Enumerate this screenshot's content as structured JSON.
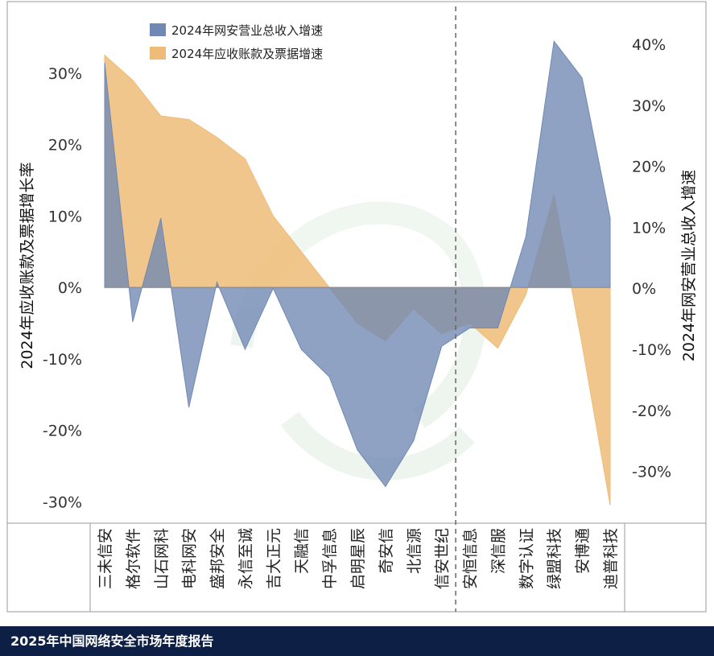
{
  "chart_data": {
    "type": "area",
    "categories": [
      "三未信安",
      "格尔软件",
      "山石网科",
      "电科网安",
      "盛邦安全",
      "永信至诚",
      "吉大正元",
      "天融信",
      "中孚信息",
      "启明星辰",
      "奇安信",
      "北信源",
      "信安世纪",
      "安恒信息",
      "深信服",
      "数字认证",
      "绿盟科技",
      "安博通",
      "迪普科技"
    ],
    "series": [
      {
        "name": "2024年网安营业总收入增速",
        "axis": "right",
        "color": "#7088b4",
        "values": [
          37,
          -5.5,
          11.5,
          -19.5,
          1,
          -10,
          0,
          -10,
          -14.5,
          -26.5,
          -32.5,
          -25,
          -9.5,
          -6.5,
          -6.5,
          8.5,
          40.5,
          34.5,
          11.5
        ]
      },
      {
        "name": "2024年应收账款及票据增速",
        "axis": "left",
        "color": "#eebc78",
        "values": [
          32.5,
          29,
          24,
          23.5,
          21,
          18,
          10,
          5,
          0,
          -5,
          -7.5,
          -3,
          -6.5,
          -5,
          -8.5,
          -1,
          13,
          -8,
          -30.5
        ]
      }
    ],
    "left_axis": {
      "label": "2024年应收账款及票据增长率",
      "ticks": [
        "30%",
        "20%",
        "10%",
        "0%",
        "-10%",
        "-20%",
        "-30%"
      ],
      "range": [
        -33,
        40
      ]
    },
    "right_axis": {
      "label": "2024年网安营业总收入增速",
      "ticks": [
        "40%",
        "30%",
        "20%",
        "10%",
        "0%",
        "-10%",
        "-20%",
        "-30%"
      ],
      "range": [
        -38.5,
        47
      ]
    },
    "divider_after_category": "信安世纪",
    "legend_position": "top-left"
  },
  "footer": {
    "text": "2025年中国网络安全市场年度报告"
  }
}
